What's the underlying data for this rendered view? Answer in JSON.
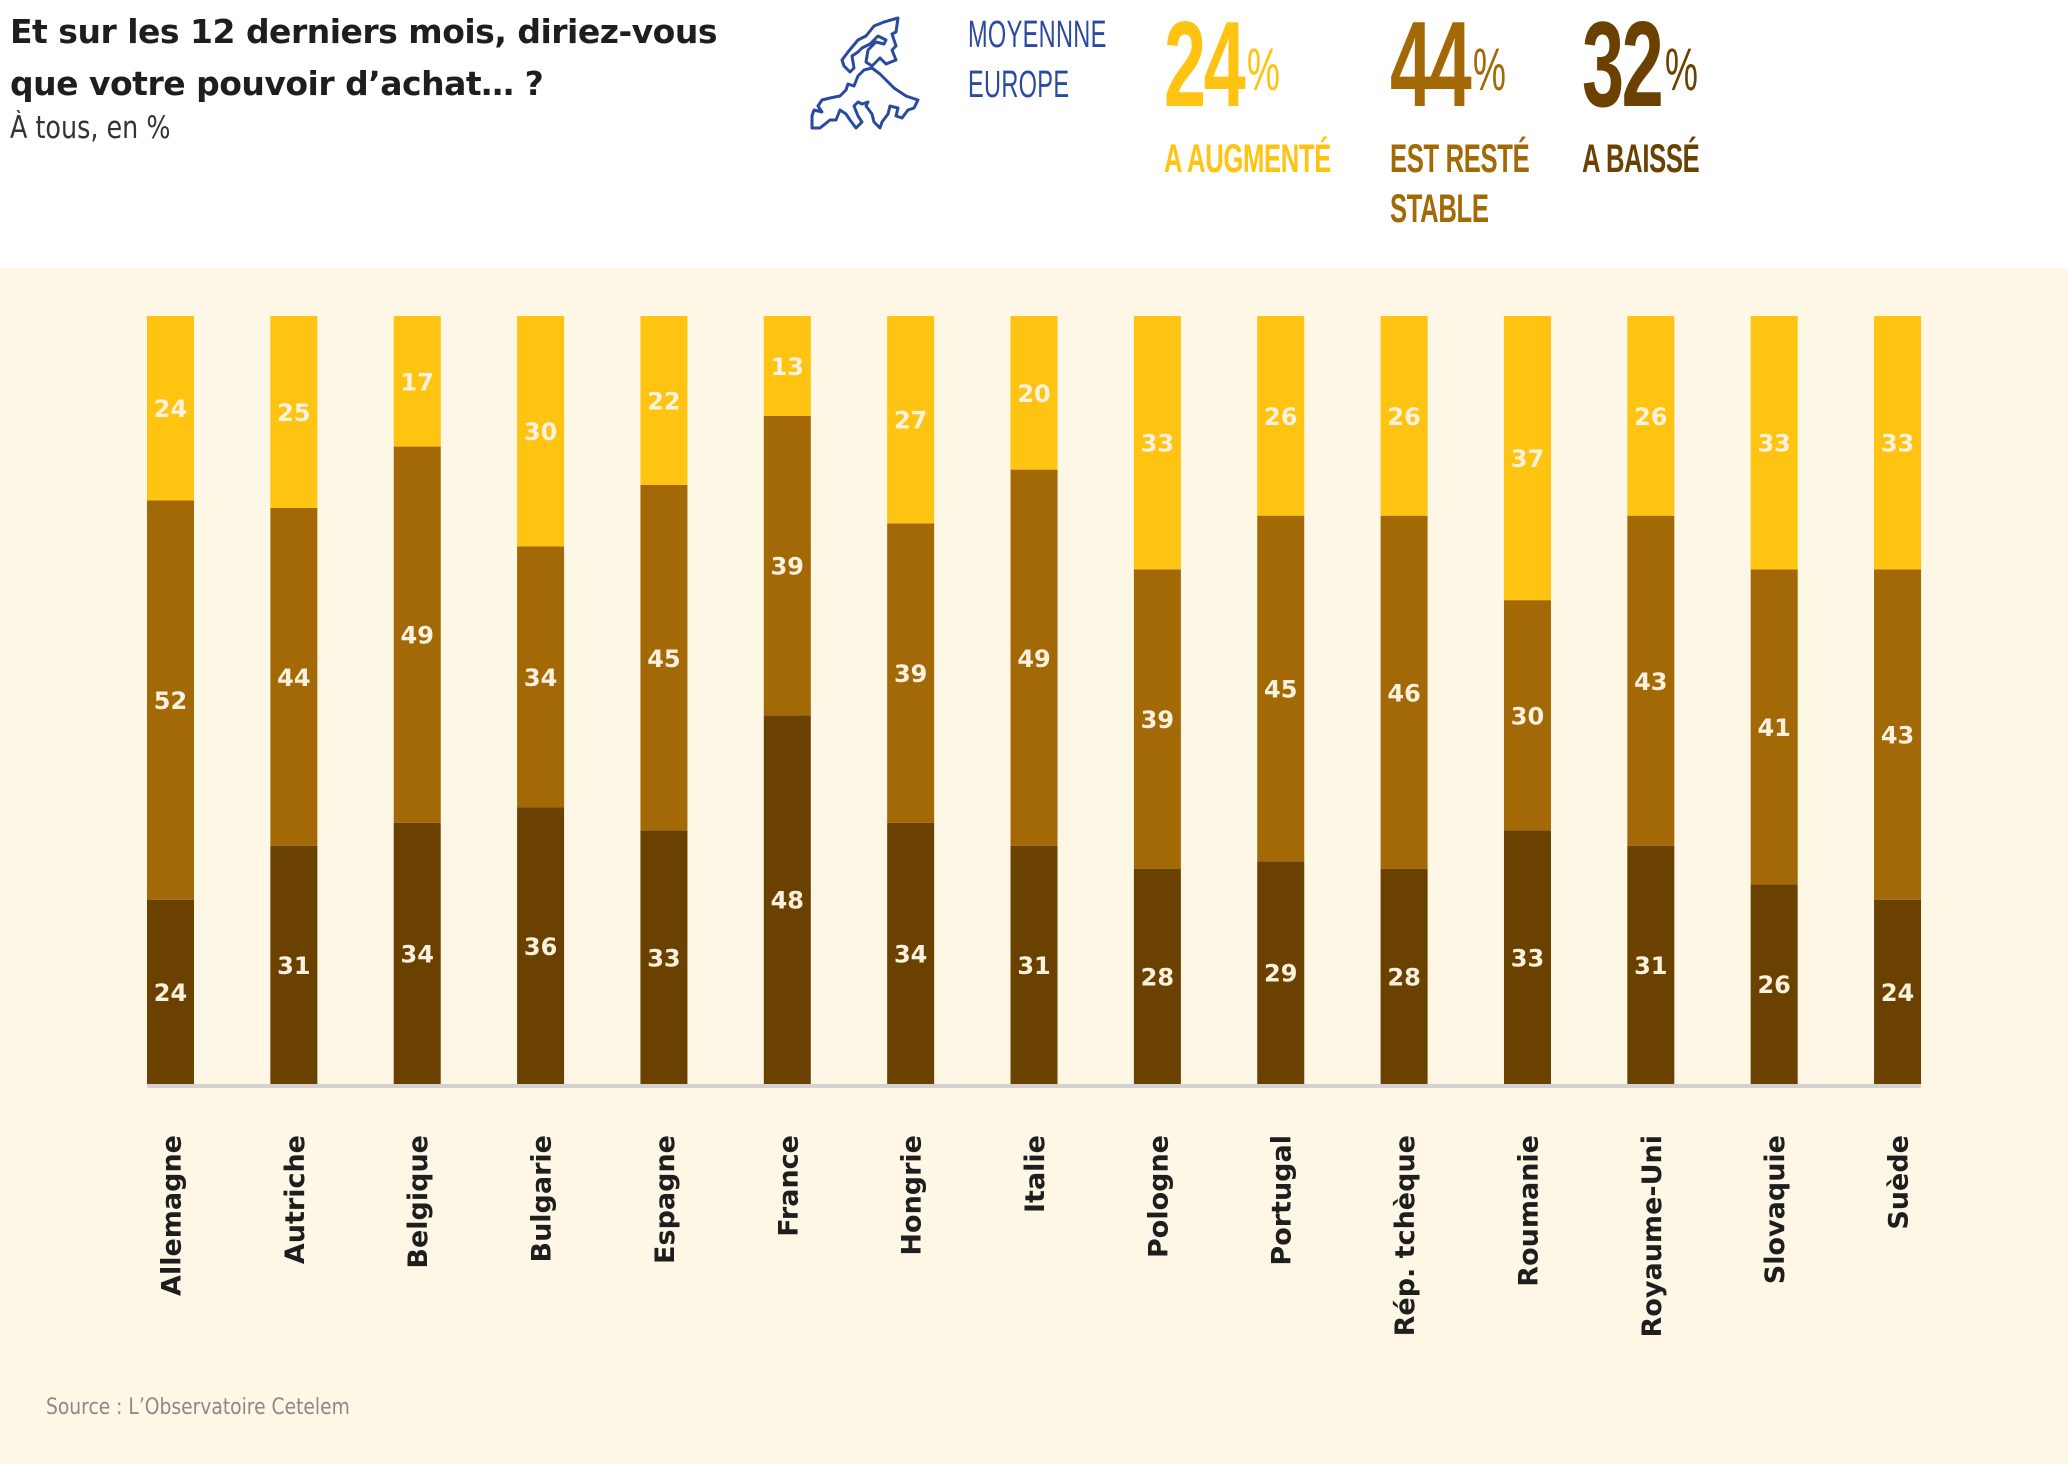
{
  "header": {
    "title_line1": "Et sur les 12 derniers mois, diriez-vous",
    "title_line2": "que votre pouvoir d’achat… ?",
    "subtitle": "À tous, en %",
    "map_icon": "europe-map-outline-icon",
    "average_label_line1": "MOYENNNE",
    "average_label_line2": "EUROPE",
    "kpis": [
      {
        "value": "24",
        "unit": "%",
        "label_line1": "A AUGMENTÉ",
        "label_line2": "",
        "color": "#ffc312"
      },
      {
        "value": "44",
        "unit": "%",
        "label_line1": "EST RESTÉ",
        "label_line2": "STABLE",
        "color": "#a36906"
      },
      {
        "value": "32",
        "unit": "%",
        "label_line1": "A BAISSÉ",
        "label_line2": "",
        "color": "#6b4100"
      }
    ]
  },
  "colors": {
    "augmente": "#ffc312",
    "stable": "#a36906",
    "baisse": "#6b4100",
    "background": "#fef7e6",
    "baseline": "#d4d2d0",
    "map_stroke": "#2a4aa0"
  },
  "chart_data": {
    "type": "bar",
    "stacked": true,
    "title": "Et sur les 12 derniers mois, diriez-vous que votre pouvoir d’achat… ?",
    "subtitle": "À tous, en %",
    "xlabel": "",
    "ylabel": "",
    "ylim": [
      0,
      100
    ],
    "grid": false,
    "legend_placement": "top-right",
    "categories": [
      "Allemagne",
      "Autriche",
      "Belgique",
      "Bulgarie",
      "Espagne",
      "France",
      "Hongrie",
      "Italie",
      "Pologne",
      "Portugal",
      "Rép. tchèque",
      "Roumanie",
      "Royaume-Uni",
      "Slovaquie",
      "Suède"
    ],
    "series": [
      {
        "name": "A baissé",
        "color": "#6b4100",
        "values": [
          24,
          31,
          34,
          36,
          33,
          48,
          34,
          31,
          28,
          29,
          28,
          33,
          31,
          26,
          24
        ]
      },
      {
        "name": "Est resté stable",
        "color": "#a36906",
        "values": [
          52,
          44,
          49,
          34,
          45,
          39,
          39,
          49,
          39,
          45,
          46,
          30,
          43,
          41,
          43
        ]
      },
      {
        "name": "A augmenté",
        "color": "#ffc312",
        "values": [
          24,
          25,
          17,
          30,
          22,
          13,
          27,
          20,
          33,
          26,
          26,
          37,
          26,
          33,
          33
        ]
      }
    ]
  },
  "source": "Source : L’Observatoire Cetelem"
}
